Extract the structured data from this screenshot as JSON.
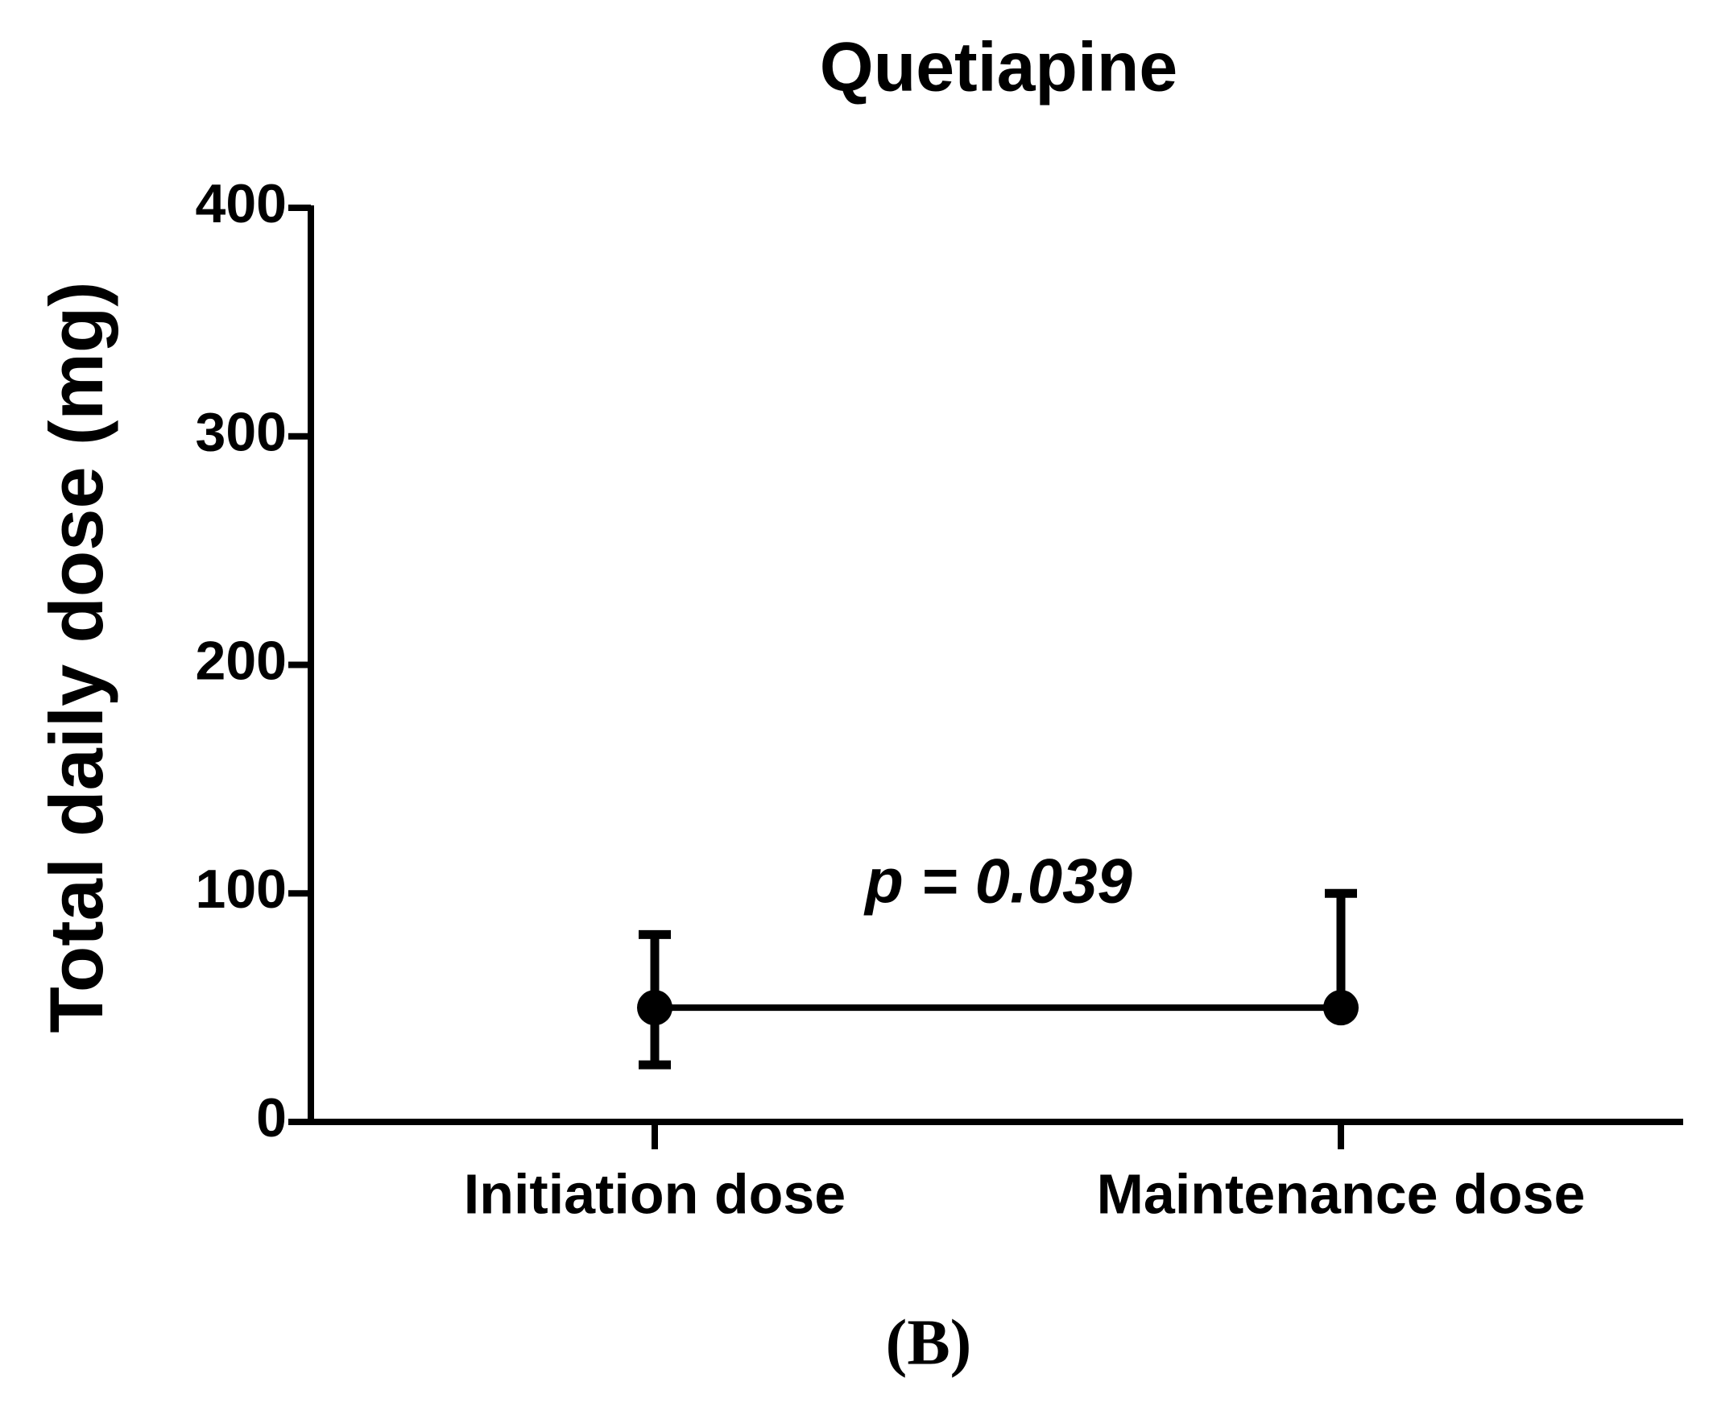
{
  "chart_data": {
    "type": "line",
    "title": "Quetiapine",
    "y_label": "Total daily dose (mg)",
    "categories": [
      "Initiation dose",
      "Maintenance dose"
    ],
    "values": [
      50,
      50
    ],
    "low": [
      25,
      50
    ],
    "high": [
      82,
      100
    ],
    "color": "#000000",
    "ylim": [
      0,
      400
    ],
    "yticks": [
      0,
      100,
      200,
      300,
      400
    ],
    "annotation": "p = 0.039",
    "caption": "(B)"
  }
}
